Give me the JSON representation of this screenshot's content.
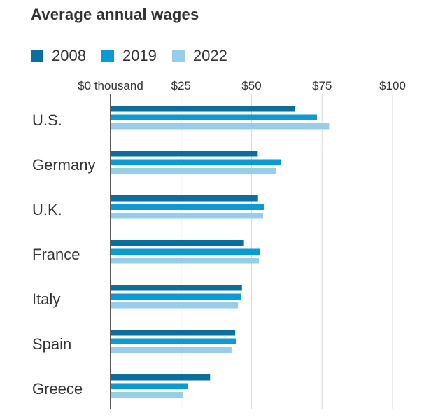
{
  "chart_data": {
    "type": "bar",
    "orientation": "horizontal",
    "title": "Average annual wages",
    "xlabel": "",
    "ylabel": "",
    "xlim": [
      0,
      100
    ],
    "grid": true,
    "legend_position": "top-left",
    "ticks": [
      {
        "value": 0,
        "label": "$0 thousand"
      },
      {
        "value": 25,
        "label": "$25"
      },
      {
        "value": 50,
        "label": "$50"
      },
      {
        "value": 75,
        "label": "$75"
      },
      {
        "value": 100,
        "label": "$100"
      }
    ],
    "categories": [
      "U.S.",
      "Germany",
      "U.K.",
      "France",
      "Italy",
      "Spain",
      "Greece"
    ],
    "series": [
      {
        "name": "2008",
        "color": "#0c6e9c",
        "values": [
          65.5,
          52.2,
          52.3,
          47.3,
          46.6,
          44.2,
          35.3
        ]
      },
      {
        "name": "2019",
        "color": "#0a9ad6",
        "values": [
          73.2,
          60.5,
          54.6,
          53.0,
          46.3,
          44.5,
          27.5
        ]
      },
      {
        "name": "2022",
        "color": "#97cdea",
        "values": [
          77.5,
          58.6,
          54.1,
          52.6,
          45.2,
          42.9,
          25.6
        ]
      }
    ]
  }
}
